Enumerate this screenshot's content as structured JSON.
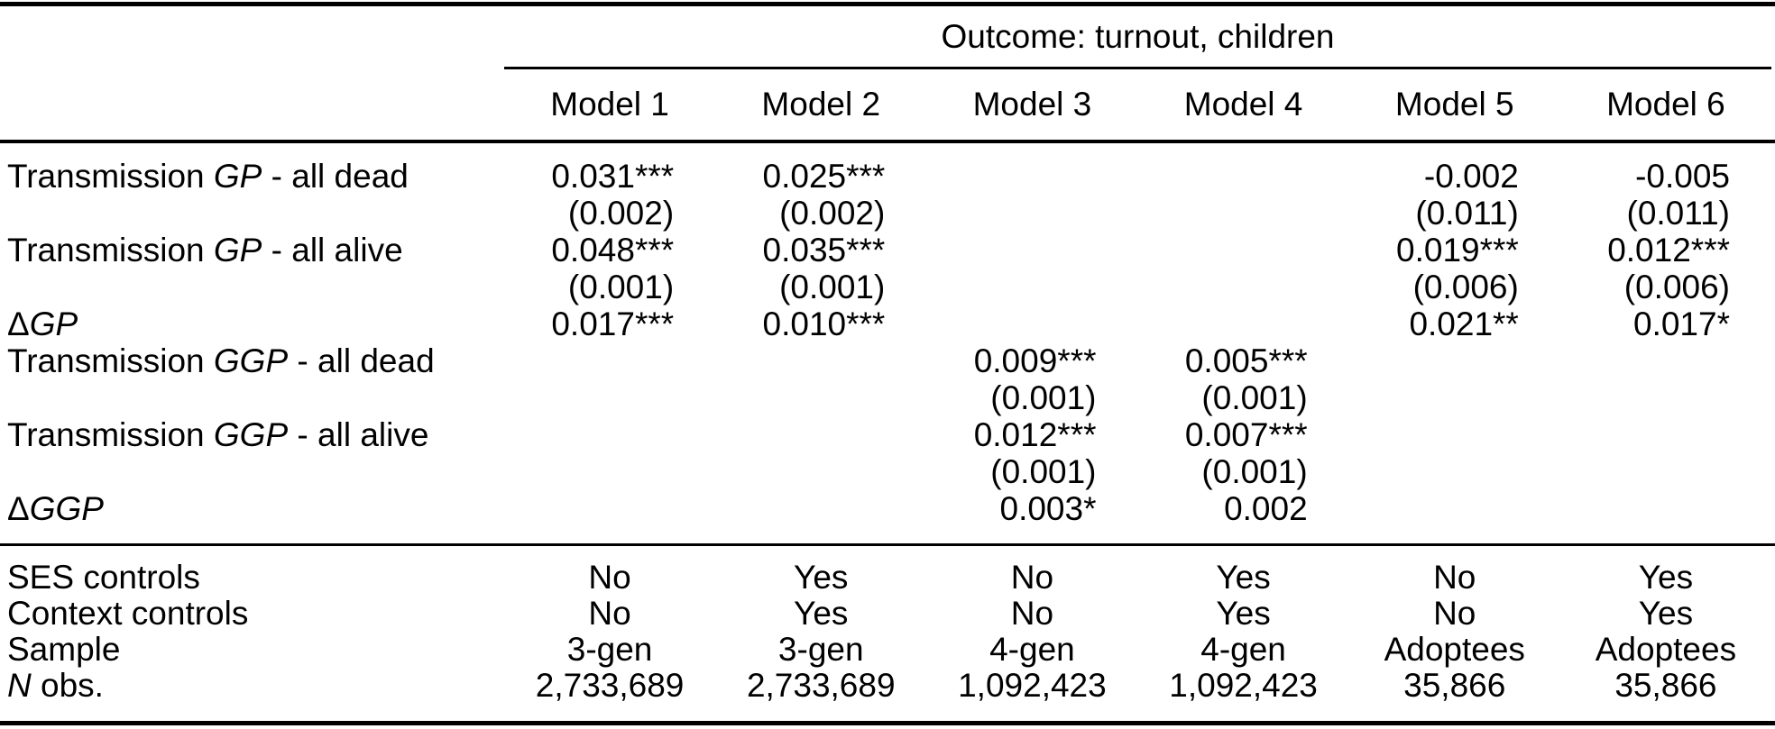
{
  "table": {
    "outcome_header": "Outcome: turnout, children",
    "model_headers": [
      "Model 1",
      "Model 2",
      "Model 3",
      "Model 4",
      "Model 5",
      "Model 6"
    ],
    "coef_rows": [
      {
        "label": {
          "pre": "Transmission ",
          "italic": "GP",
          "post": " - all dead"
        },
        "cells": [
          "0.031***",
          "0.025***",
          "",
          "",
          "-0.002",
          "-0.005"
        ]
      },
      {
        "label": {
          "pre": "",
          "italic": "",
          "post": ""
        },
        "cells": [
          "(0.002)",
          "(0.002)",
          "",
          "",
          "(0.011)",
          "(0.011)"
        ]
      },
      {
        "label": {
          "pre": "Transmission ",
          "italic": "GP",
          "post": " - all alive"
        },
        "cells": [
          "0.048***",
          "0.035***",
          "",
          "",
          "0.019***",
          "0.012***"
        ]
      },
      {
        "label": {
          "pre": "",
          "italic": "",
          "post": ""
        },
        "cells": [
          "(0.001)",
          "(0.001)",
          "",
          "",
          "(0.006)",
          "(0.006)"
        ]
      },
      {
        "label": {
          "pre": "Δ",
          "italic": "GP",
          "post": ""
        },
        "cells": [
          "0.017***",
          "0.010***",
          "",
          "",
          "0.021**",
          "0.017*"
        ]
      },
      {
        "label": {
          "pre": "Transmission ",
          "italic": "GGP",
          "post": " - all dead"
        },
        "cells": [
          "",
          "",
          "0.009***",
          "0.005***",
          "",
          ""
        ]
      },
      {
        "label": {
          "pre": "",
          "italic": "",
          "post": ""
        },
        "cells": [
          "",
          "",
          "(0.001)",
          "(0.001)",
          "",
          ""
        ]
      },
      {
        "label": {
          "pre": "Transmission ",
          "italic": "GGP",
          "post": " - all alive"
        },
        "cells": [
          "",
          "",
          "0.012***",
          "0.007***",
          "",
          ""
        ]
      },
      {
        "label": {
          "pre": "",
          "italic": "",
          "post": ""
        },
        "cells": [
          "",
          "",
          "(0.001)",
          "(0.001)",
          "",
          ""
        ]
      },
      {
        "label": {
          "pre": "Δ",
          "italic": "GGP",
          "post": ""
        },
        "cells": [
          "",
          "",
          "0.003*",
          "0.002",
          "",
          ""
        ]
      }
    ],
    "footer_rows": [
      {
        "label": {
          "pre": "SES controls",
          "italic": "",
          "post": ""
        },
        "cells": [
          "No",
          "Yes",
          "No",
          "Yes",
          "No",
          "Yes"
        ]
      },
      {
        "label": {
          "pre": "Context controls",
          "italic": "",
          "post": ""
        },
        "cells": [
          "No",
          "Yes",
          "No",
          "Yes",
          "No",
          "Yes"
        ]
      },
      {
        "label": {
          "pre": "Sample",
          "italic": "",
          "post": ""
        },
        "cells": [
          "3-gen",
          "3-gen",
          "4-gen",
          "4-gen",
          "Adoptees",
          "Adoptees"
        ]
      },
      {
        "label": {
          "pre": "",
          "italic": "N",
          "post": " obs."
        },
        "cells": [
          "2,733,689",
          "2,733,689",
          "1,092,423",
          "1,092,423",
          "35,866",
          "35,866"
        ]
      }
    ]
  }
}
